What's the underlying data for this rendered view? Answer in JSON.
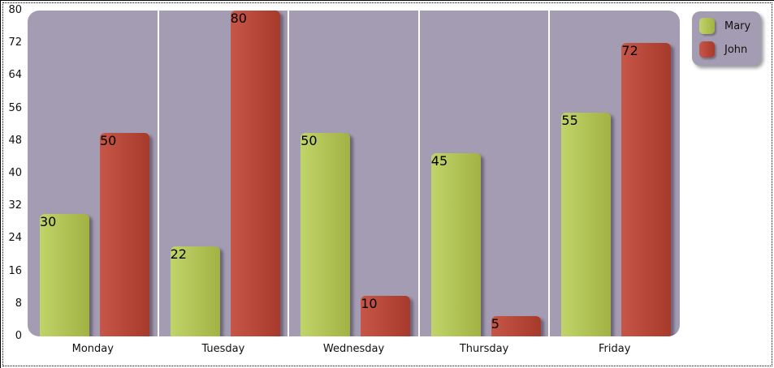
{
  "chart_data": {
    "type": "bar",
    "title": "",
    "xlabel": "",
    "ylabel": "",
    "categories": [
      "Monday",
      "Tuesday",
      "Wednesday",
      "Thursday",
      "Friday"
    ],
    "series": [
      {
        "name": "Mary",
        "values": [
          30,
          22,
          50,
          45,
          55
        ],
        "color_start": "#c0d469",
        "color_end": "#a2b243"
      },
      {
        "name": "John",
        "values": [
          50,
          80,
          10,
          5,
          72
        ],
        "color_start": "#c75648",
        "color_end": "#a63a2b"
      }
    ],
    "ylim": [
      0,
      80
    ],
    "yticks": [
      0,
      8,
      16,
      24,
      32,
      40,
      48,
      56,
      64,
      72,
      80
    ],
    "grid": "white vertical dividers between category bands",
    "legend_position": "top-right",
    "colors": {
      "plot_background": "#a49cb2",
      "page_background": "#ffffff",
      "divider": "#ffffff",
      "text": "#111111",
      "bar_shadow": "rgba(55,45,70,0.5)"
    }
  }
}
